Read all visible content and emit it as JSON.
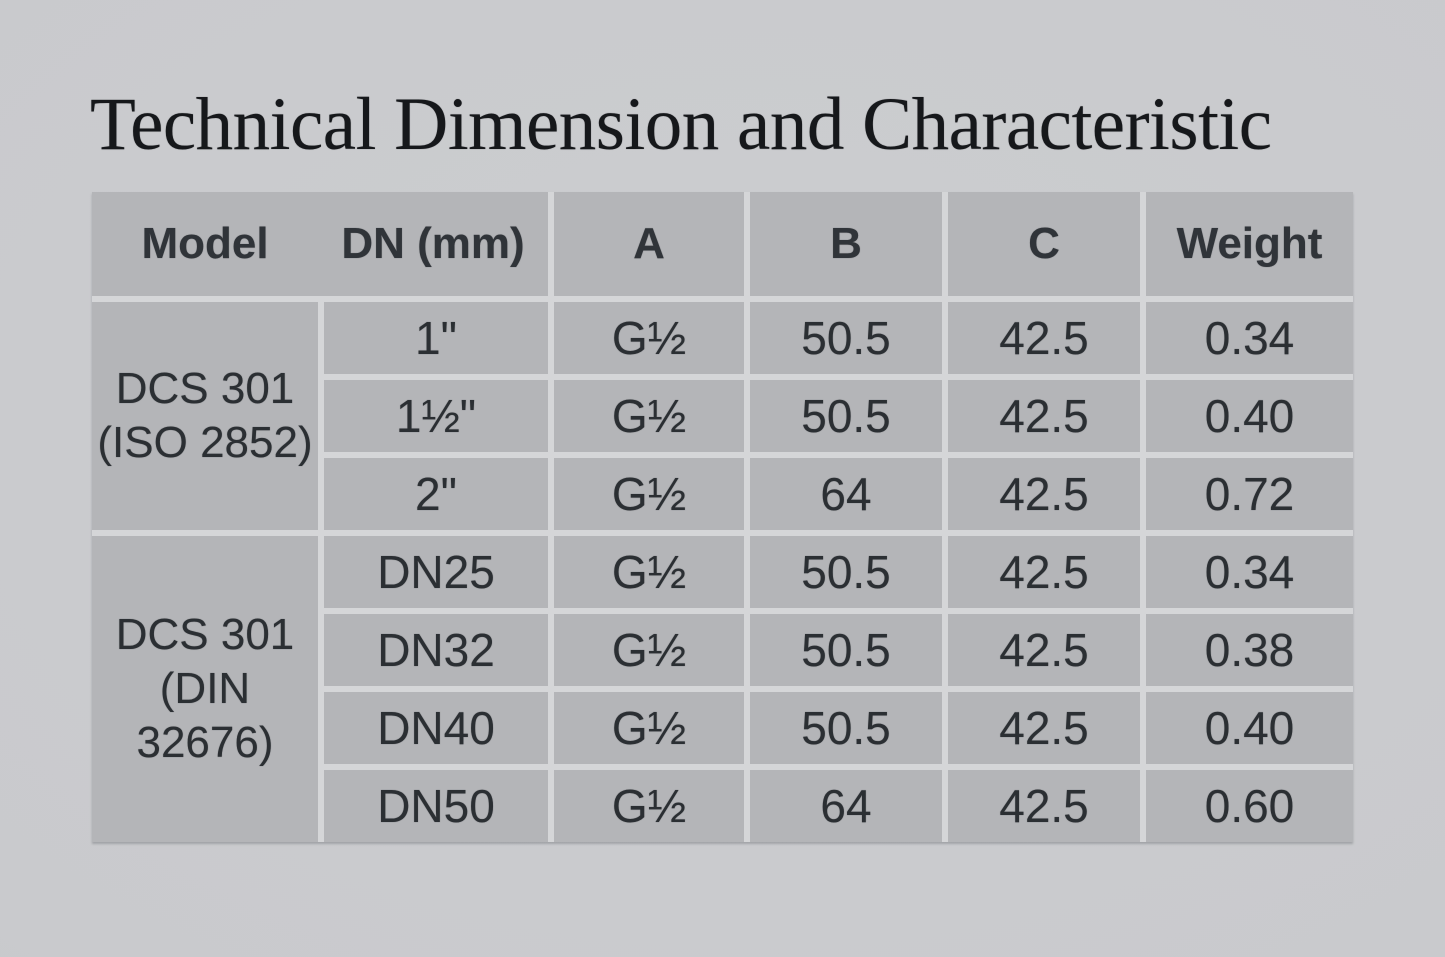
{
  "title": "Technical Dimension and Characteristic",
  "colors": {
    "page_background": "#c9cacd",
    "cell_background": "#b4b5b8",
    "grid_gap": "#d5d6d8",
    "table_text": "#2b2f33",
    "title_text": "#16181b"
  },
  "table": {
    "headers": {
      "model": "Model",
      "dn": "DN (mm)",
      "a": "A",
      "b": "B",
      "c": "C",
      "weight": "Weight"
    },
    "groups": [
      {
        "model_line1": "DCS 301",
        "model_line2": "(ISO 2852)",
        "rows": [
          {
            "dn": "1\"",
            "a": "G½",
            "b": "50.5",
            "c": "42.5",
            "weight": "0.34"
          },
          {
            "dn": "1½\"",
            "a": "G½",
            "b": "50.5",
            "c": "42.5",
            "weight": "0.40"
          },
          {
            "dn": "2\"",
            "a": "G½",
            "b": "64",
            "c": "42.5",
            "weight": "0.72"
          }
        ]
      },
      {
        "model_line1": "DCS 301",
        "model_line2": "(DIN 32676)",
        "rows": [
          {
            "dn": "DN25",
            "a": "G½",
            "b": "50.5",
            "c": "42.5",
            "weight": "0.34"
          },
          {
            "dn": "DN32",
            "a": "G½",
            "b": "50.5",
            "c": "42.5",
            "weight": "0.38"
          },
          {
            "dn": "DN40",
            "a": "G½",
            "b": "50.5",
            "c": "42.5",
            "weight": "0.40"
          },
          {
            "dn": "DN50",
            "a": "G½",
            "b": "64",
            "c": "42.5",
            "weight": "0.60"
          }
        ]
      }
    ]
  }
}
